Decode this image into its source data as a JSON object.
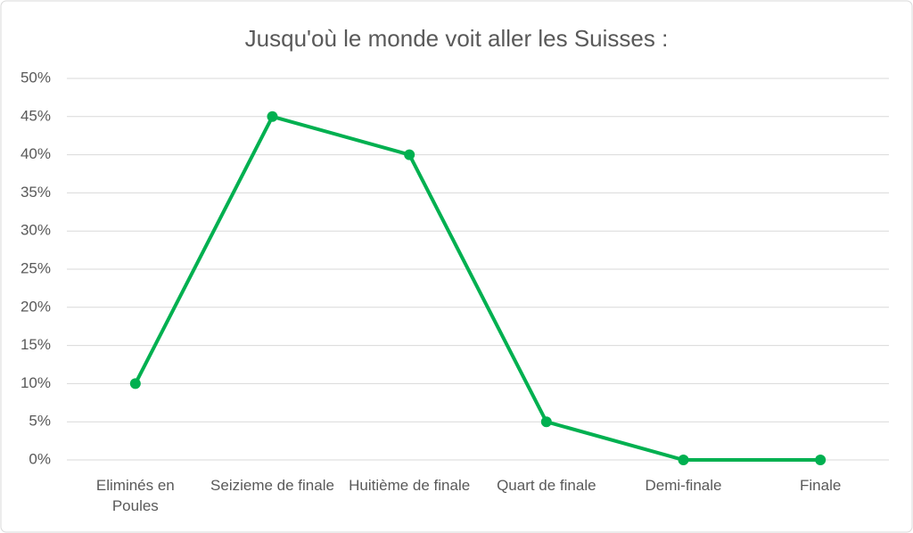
{
  "chart_data": {
    "type": "line",
    "title": "Jusqu'où le monde voit aller les Suisses :",
    "categories": [
      "Eliminés en Poules",
      "Seizieme de finale",
      "Huitième de finale",
      "Quart de finale",
      "Demi-finale",
      "Finale"
    ],
    "values": [
      10,
      45,
      40,
      5,
      0,
      0
    ],
    "color": "#00b050",
    "ylim": [
      0,
      50
    ],
    "yticks": [
      {
        "value": 0,
        "label": "0%"
      },
      {
        "value": 5,
        "label": "5%"
      },
      {
        "value": 10,
        "label": "10%"
      },
      {
        "value": 15,
        "label": "15%"
      },
      {
        "value": 20,
        "label": "20%"
      },
      {
        "value": 25,
        "label": "25%"
      },
      {
        "value": 30,
        "label": "30%"
      },
      {
        "value": 35,
        "label": "35%"
      },
      {
        "value": 40,
        "label": "40%"
      },
      {
        "value": 45,
        "label": "45%"
      },
      {
        "value": 50,
        "label": "50%"
      }
    ],
    "grid": true
  }
}
